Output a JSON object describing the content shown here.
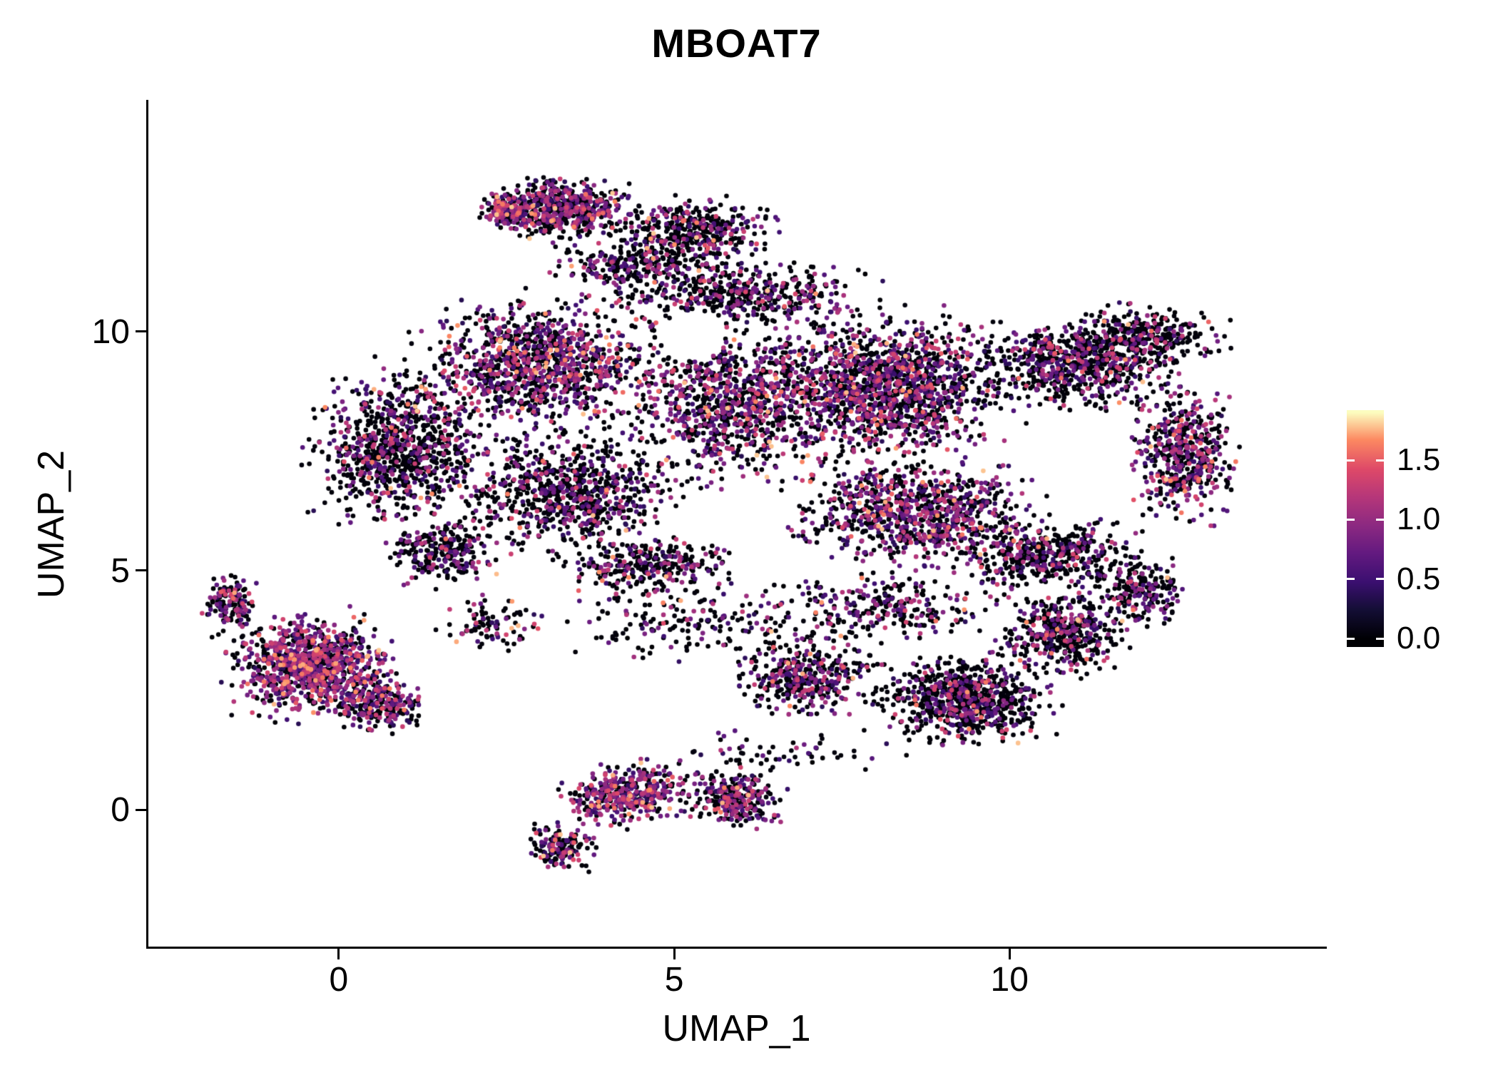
{
  "title": "MBOAT7",
  "chart_data": {
    "type": "scatter",
    "title": "MBOAT7",
    "xlabel": "UMAP_1",
    "ylabel": "UMAP_2",
    "xlim": [
      -2.87,
      14.73
    ],
    "ylim": [
      -2.91,
      14.85
    ],
    "grid": false,
    "background": "#ffffff",
    "point_radius_px": 3.3,
    "total_points_approx": 15000,
    "x_ticks": {
      "values": [
        0,
        5,
        10
      ],
      "labels": [
        "0",
        "5",
        "10"
      ]
    },
    "y_ticks": {
      "values": [
        0,
        5,
        10
      ],
      "labels": [
        "0",
        "5",
        "10"
      ]
    },
    "color_scale": {
      "name": "magma",
      "domain": [
        0,
        1.9
      ],
      "bar_vmin": -0.07,
      "bar_vmax": 1.92,
      "stops": [
        {
          "t": 0.0,
          "c": "#000004"
        },
        {
          "t": 0.13,
          "c": "#140e36"
        },
        {
          "t": 0.25,
          "c": "#3b0f70"
        },
        {
          "t": 0.38,
          "c": "#641a80"
        },
        {
          "t": 0.5,
          "c": "#8c2981"
        },
        {
          "t": 0.63,
          "c": "#b73779"
        },
        {
          "t": 0.75,
          "c": "#de4968"
        },
        {
          "t": 0.88,
          "c": "#fc8961"
        },
        {
          "t": 1.0,
          "c": "#fcfdbf"
        }
      ],
      "legend_ticks": {
        "values": [
          1.5,
          1.0,
          0.5,
          0.0
        ],
        "labels": [
          "1.5",
          "1.0",
          "0.5",
          "0.0"
        ]
      },
      "legend_position": "right"
    },
    "value_bins": [
      [
        0.0,
        0.05
      ],
      [
        0.35,
        0.85
      ],
      [
        0.85,
        1.35
      ],
      [
        1.35,
        1.8
      ]
    ],
    "mixes": {
      "default": [
        0.5,
        0.27,
        0.19,
        0.04
      ],
      "dark": [
        0.66,
        0.2,
        0.12,
        0.02
      ],
      "bright": [
        0.36,
        0.28,
        0.28,
        0.08
      ]
    },
    "clusters": [
      {
        "cx": 0.9,
        "cy": 7.6,
        "rx": 1.6,
        "ry": 2.0,
        "n": 900,
        "mix": "dark"
      },
      {
        "cx": 3.0,
        "cy": 9.3,
        "rx": 2.2,
        "ry": 1.7,
        "n": 1100,
        "mix": "default"
      },
      {
        "cx": 3.4,
        "cy": 6.6,
        "rx": 2.2,
        "ry": 1.6,
        "n": 800,
        "mix": "dark"
      },
      {
        "cx": 5.9,
        "cy": 8.6,
        "rx": 2.0,
        "ry": 2.2,
        "n": 1000,
        "mix": "default"
      },
      {
        "cx": 8.2,
        "cy": 8.8,
        "rx": 2.2,
        "ry": 1.9,
        "n": 1400,
        "mix": "default"
      },
      {
        "cx": 8.6,
        "cy": 6.2,
        "rx": 2.3,
        "ry": 1.4,
        "n": 900,
        "mix": "default"
      },
      {
        "cx": 11.0,
        "cy": 9.3,
        "rx": 1.9,
        "ry": 1.2,
        "n": 700,
        "mix": "dark"
      },
      {
        "cx": 12.6,
        "cy": 7.4,
        "rx": 1.0,
        "ry": 1.7,
        "n": 500,
        "mix": "default"
      },
      {
        "cx": 10.6,
        "cy": 5.3,
        "rx": 1.7,
        "ry": 0.9,
        "n": 450,
        "mix": "dark"
      },
      {
        "cx": 12.0,
        "cy": 9.9,
        "rx": 1.4,
        "ry": 0.8,
        "n": 300,
        "mix": "dark"
      },
      {
        "cx": 6.0,
        "cy": 10.8,
        "rx": 2.6,
        "ry": 0.9,
        "n": 500,
        "mix": "dark"
      },
      {
        "cx": 4.6,
        "cy": 5.1,
        "rx": 1.6,
        "ry": 0.8,
        "n": 300,
        "mix": "dark"
      },
      {
        "cx": 1.5,
        "cy": 5.4,
        "rx": 1.1,
        "ry": 0.9,
        "n": 250,
        "mix": "dark"
      },
      {
        "cx": 3.3,
        "cy": 12.6,
        "rx": 1.3,
        "ry": 0.8,
        "n": 550,
        "mix": "default"
      },
      {
        "cx": 2.5,
        "cy": 12.5,
        "rx": 0.5,
        "ry": 0.45,
        "n": 150,
        "mix": "bright"
      },
      {
        "cx": 5.3,
        "cy": 12.1,
        "rx": 1.5,
        "ry": 0.9,
        "n": 400,
        "mix": "dark"
      },
      {
        "cx": 4.4,
        "cy": 11.4,
        "rx": 1.6,
        "ry": 0.6,
        "n": 220,
        "mix": "dark"
      },
      {
        "cx": -0.4,
        "cy": 3.0,
        "rx": 1.5,
        "ry": 1.3,
        "n": 950,
        "mix": "bright"
      },
      {
        "cx": -1.6,
        "cy": 4.3,
        "rx": 0.5,
        "ry": 0.8,
        "n": 150,
        "mix": "default"
      },
      {
        "cx": 0.6,
        "cy": 2.2,
        "rx": 0.9,
        "ry": 0.7,
        "n": 250,
        "mix": "default"
      },
      {
        "cx": 4.3,
        "cy": 0.3,
        "rx": 1.2,
        "ry": 0.8,
        "n": 420,
        "mix": "bright",
        "rot": 15
      },
      {
        "cx": 5.9,
        "cy": 0.2,
        "rx": 0.9,
        "ry": 0.8,
        "n": 280,
        "mix": "default"
      },
      {
        "cx": 3.3,
        "cy": -0.8,
        "rx": 0.6,
        "ry": 0.6,
        "n": 160,
        "mix": "default"
      },
      {
        "cx": 9.3,
        "cy": 2.3,
        "rx": 1.6,
        "ry": 1.1,
        "n": 750,
        "mix": "dark"
      },
      {
        "cx": 7.0,
        "cy": 2.8,
        "rx": 1.3,
        "ry": 1.0,
        "n": 400,
        "mix": "dark"
      },
      {
        "cx": 10.8,
        "cy": 3.7,
        "rx": 1.2,
        "ry": 1.1,
        "n": 400,
        "mix": "dark"
      },
      {
        "cx": 8.0,
        "cy": 4.2,
        "rx": 2.3,
        "ry": 0.9,
        "n": 280,
        "mix": "dark"
      },
      {
        "cx": 11.9,
        "cy": 4.6,
        "rx": 0.9,
        "ry": 0.9,
        "n": 200,
        "mix": "dark"
      },
      {
        "cx": 5.3,
        "cy": 3.9,
        "rx": 2.2,
        "ry": 1.0,
        "n": 180,
        "mix": "dark"
      },
      {
        "cx": 2.3,
        "cy": 3.9,
        "rx": 1.0,
        "ry": 0.8,
        "n": 90,
        "mix": "dark"
      },
      {
        "cx": 6.5,
        "cy": 1.2,
        "rx": 2.0,
        "ry": 0.6,
        "n": 60,
        "mix": "dark"
      }
    ],
    "holes": [
      {
        "cx": 11.0,
        "cy": 7.3,
        "rx": 0.75,
        "ry": 0.85
      },
      {
        "cx": 5.3,
        "cy": 9.9,
        "rx": 0.45,
        "ry": 0.5
      }
    ]
  },
  "seed": 42
}
